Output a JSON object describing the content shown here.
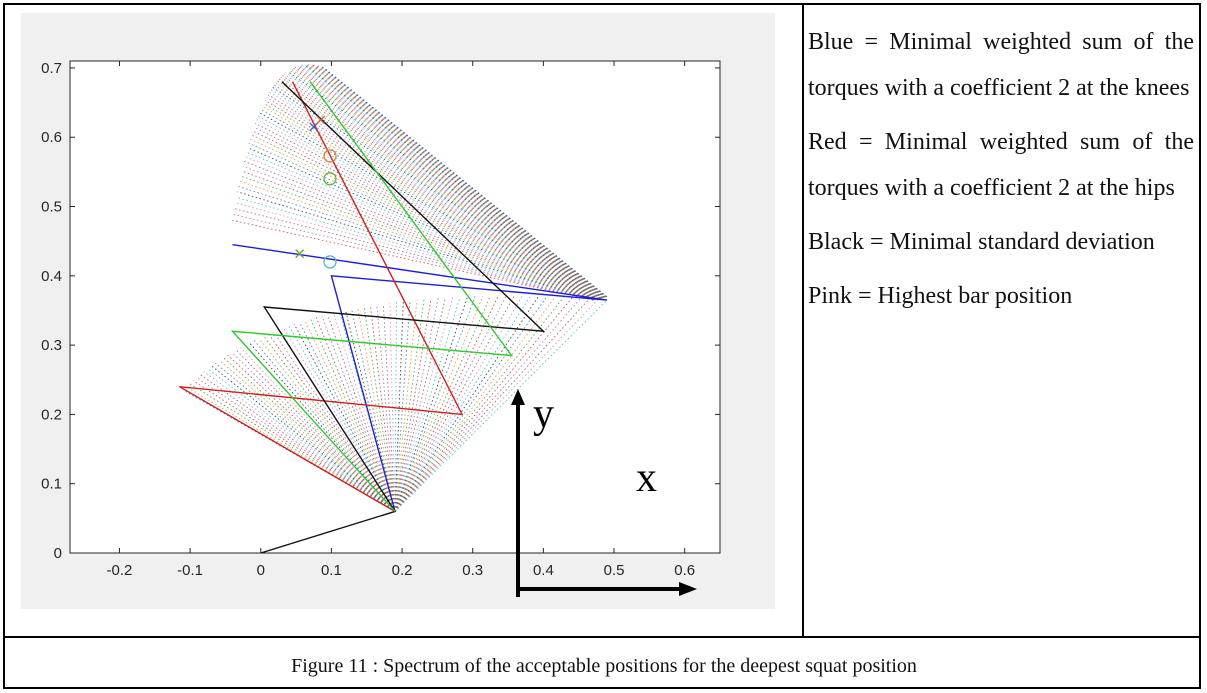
{
  "chart_data": {
    "type": "line",
    "xlim": [
      -0.27,
      0.65
    ],
    "ylim": [
      0,
      0.71
    ],
    "x_ticks": [
      "-0.2",
      "-0.1",
      "0",
      "0.1",
      "0.2",
      "0.3",
      "0.4",
      "0.5",
      "0.6"
    ],
    "y_ticks": [
      "0",
      "0.1",
      "0.2",
      "0.3",
      "0.4",
      "0.5",
      "0.6",
      "0.7"
    ],
    "x_tick_values": [
      -0.2,
      -0.1,
      0,
      0.1,
      0.2,
      0.3,
      0.4,
      0.5,
      0.6
    ],
    "y_tick_values": [
      0,
      0.1,
      0.2,
      0.3,
      0.4,
      0.5,
      0.6,
      0.7
    ],
    "inset_axis_labels": {
      "x": "x",
      "y": "y"
    },
    "series": [
      {
        "color": "#1f1fd0",
        "points": [
          [
            0.19,
            0.06
          ],
          [
            0.1,
            0.4
          ],
          [
            0.49,
            0.365
          ],
          [
            -0.04,
            0.445
          ]
        ]
      },
      {
        "color": "#d02020",
        "points": [
          [
            0.19,
            0.06
          ],
          [
            -0.115,
            0.24
          ],
          [
            0.285,
            0.2
          ],
          [
            0.045,
            0.68
          ]
        ]
      },
      {
        "color": "#111111",
        "points": [
          [
            0,
            0
          ],
          [
            0.19,
            0.06
          ],
          [
            0.005,
            0.355
          ],
          [
            0.4,
            0.32
          ],
          [
            0.03,
            0.68
          ]
        ]
      },
      {
        "color": "#2ec82e",
        "points": [
          [
            0.19,
            0.06
          ],
          [
            -0.04,
            0.32
          ],
          [
            0.355,
            0.285
          ],
          [
            0.07,
            0.68
          ]
        ]
      }
    ],
    "markers": [
      {
        "shape": "x",
        "color": "#3060d0",
        "point": [
          0.075,
          0.615
        ]
      },
      {
        "shape": "x",
        "color": "#d06030",
        "point": [
          0.085,
          0.625
        ]
      },
      {
        "shape": "x",
        "color": "#60a040",
        "point": [
          0.055,
          0.432
        ]
      },
      {
        "shape": "o",
        "color": "#e08030",
        "point": [
          0.098,
          0.573
        ]
      },
      {
        "shape": "o",
        "color": "#60b040",
        "point": [
          0.098,
          0.54
        ]
      },
      {
        "shape": "o",
        "color": "#50b0d0",
        "point": [
          0.098,
          0.42
        ]
      }
    ]
  },
  "legend": {
    "blue": "Blue = Minimal weighted sum of the torques with a coefficient 2 at the knees",
    "red": "Red = Minimal weighted sum of the torques with a coefficient 2 at the hips",
    "black": "Black = Minimal standard deviation",
    "pink": "Pink = Highest bar position"
  },
  "caption": "Figure 11 : Spectrum of the acceptable positions for the deepest squat position"
}
